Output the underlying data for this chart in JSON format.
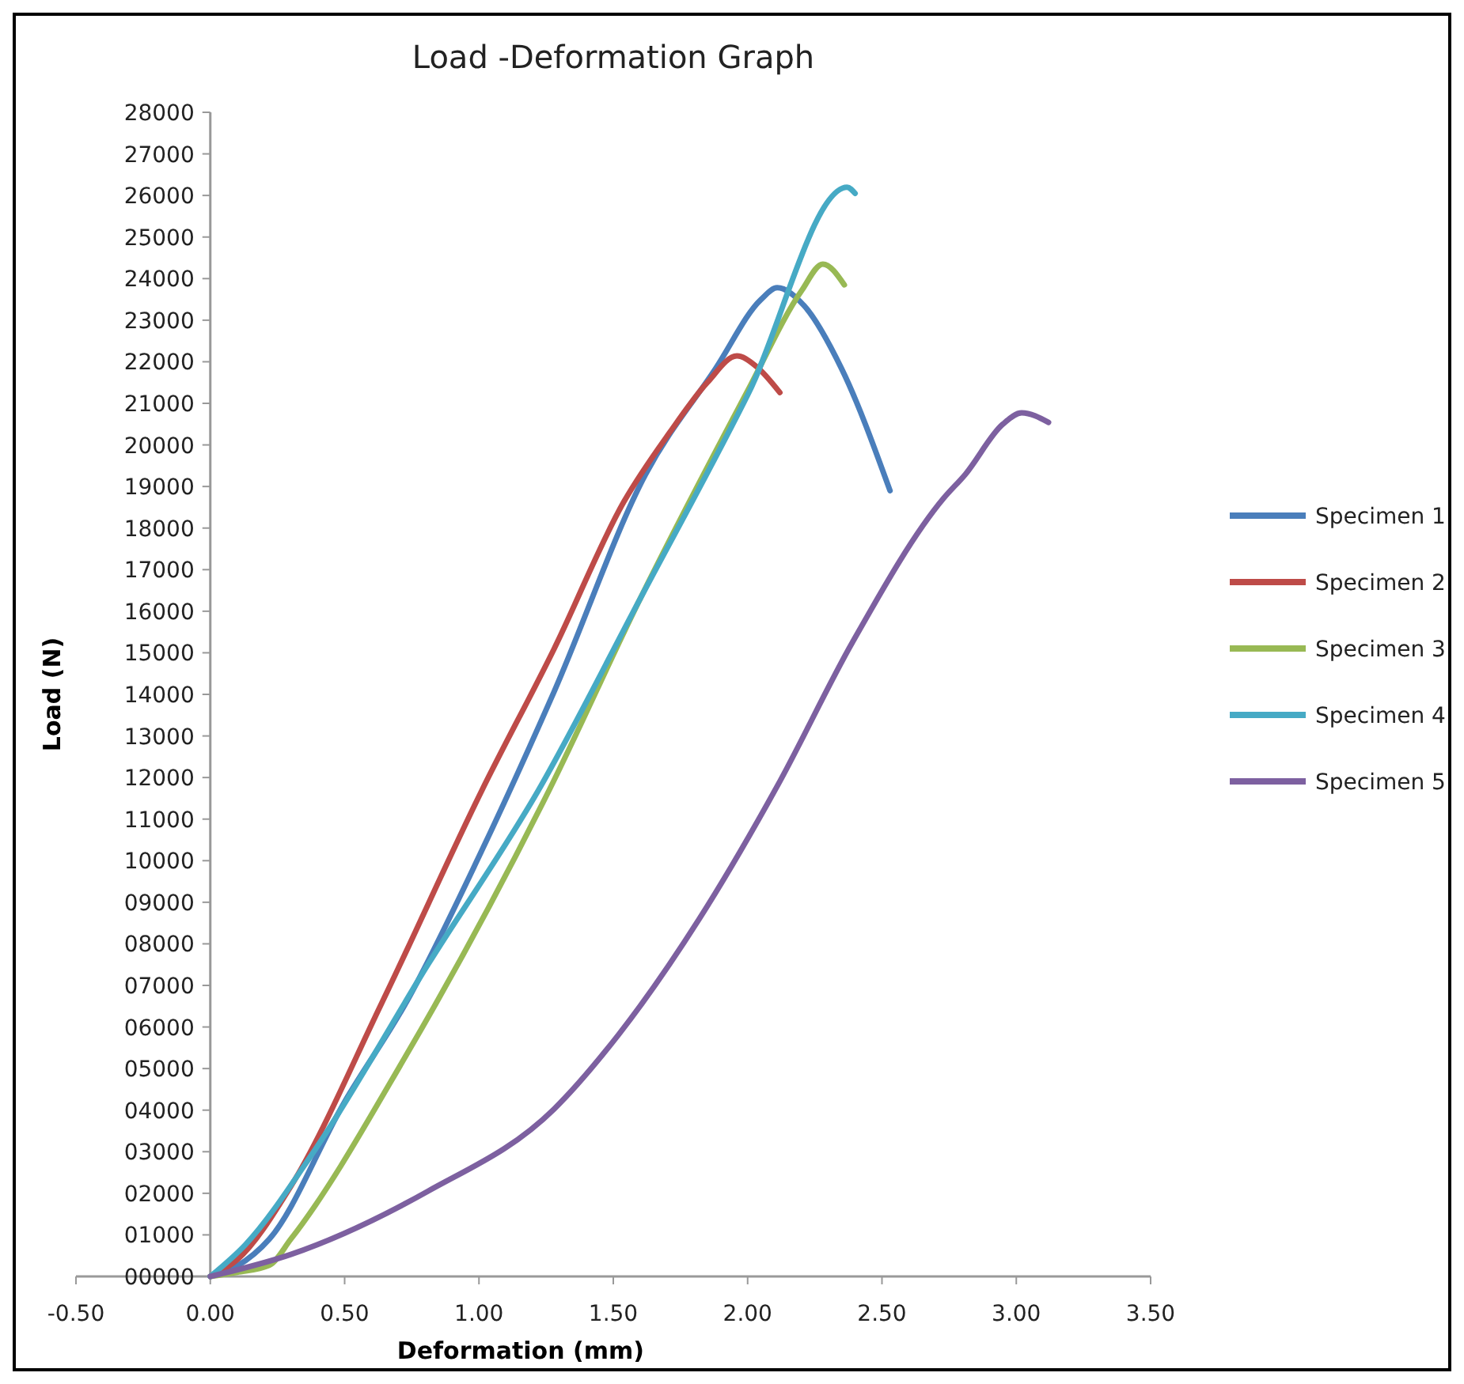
{
  "chart_data": {
    "type": "line",
    "title": "Load -Deformation Graph",
    "xlabel": "Deformation (mm)",
    "ylabel": "Load (N)",
    "xlim": [
      -0.5,
      3.5
    ],
    "xticks": [
      {
        "value": -0.5,
        "label": "-0.50"
      },
      {
        "value": 0,
        "label": "0.00"
      },
      {
        "value": 0.5,
        "label": "0.50"
      },
      {
        "value": 1,
        "label": "1.00"
      },
      {
        "value": 1.5,
        "label": "1.50"
      },
      {
        "value": 2,
        "label": "2.00"
      },
      {
        "value": 2.5,
        "label": "2.50"
      },
      {
        "value": 3,
        "label": "3.00"
      },
      {
        "value": 3.5,
        "label": "3.50"
      }
    ],
    "ylim": [
      0,
      28000
    ],
    "yticks": [
      {
        "value": 0,
        "label": "00000"
      },
      {
        "value": 1000,
        "label": "01000"
      },
      {
        "value": 2000,
        "label": "02000"
      },
      {
        "value": 3000,
        "label": "03000"
      },
      {
        "value": 4000,
        "label": "04000"
      },
      {
        "value": 5000,
        "label": "05000"
      },
      {
        "value": 6000,
        "label": "06000"
      },
      {
        "value": 7000,
        "label": "07000"
      },
      {
        "value": 8000,
        "label": "08000"
      },
      {
        "value": 9000,
        "label": "09000"
      },
      10000,
      11000,
      12000,
      13000,
      14000,
      15000,
      16000,
      17000,
      18000,
      19000,
      20000,
      21000,
      22000,
      23000,
      24000,
      25000,
      26000,
      27000,
      28000
    ],
    "grid": false,
    "legend": "right",
    "marker": "none",
    "line_style": "solid",
    "series": [
      {
        "name": "Specimen 1",
        "color": "#4a7ebb",
        "x": [
          0,
          0.1,
          0.22,
          0.5,
          0.73,
          1.0,
          1.28,
          1.62,
          1.88,
          2.05,
          2.11,
          2.21,
          2.35,
          2.53
        ],
        "values": [
          0,
          250,
          900,
          4200,
          6600,
          10100,
          14070,
          19290,
          21830,
          23500,
          23780,
          23350,
          21830,
          18900
        ]
      },
      {
        "name": "Specimen 2",
        "color": "#be4b48",
        "x": [
          0,
          0.1,
          0.3,
          0.64,
          1.01,
          1.28,
          1.54,
          1.71,
          1.85,
          1.96,
          2.03,
          2.12
        ],
        "values": [
          0,
          400,
          2170,
          6600,
          11680,
          15100,
          18640,
          20300,
          21500,
          22140,
          21900,
          21260
        ]
      },
      {
        "name": "Specimen 3",
        "color": "#98b954",
        "x": [
          0,
          0.1,
          0.22,
          0.3,
          0.73,
          1.26,
          1.6,
          2.0,
          2.2,
          2.28,
          2.36
        ],
        "values": [
          0,
          100,
          270,
          900,
          5330,
          11680,
          16300,
          21300,
          23700,
          24350,
          23850
        ]
      },
      {
        "name": "Specimen 4",
        "color": "#46aac5",
        "x": [
          0,
          0.13,
          0.39,
          0.81,
          1.22,
          1.6,
          2.0,
          2.37,
          2.4
        ],
        "values": [
          0,
          760,
          3050,
          7500,
          11680,
          16300,
          21200,
          26200,
          26050
        ]
      },
      {
        "name": "Specimen 5",
        "color": "#7d60a0",
        "x": [
          0,
          0.3,
          0.81,
          1.28,
          1.52,
          1.82,
          2.11,
          2.39,
          2.73,
          2.81,
          2.95,
          3.02,
          3.12
        ],
        "values": [
          0,
          530,
          2050,
          4030,
          5820,
          8600,
          11790,
          15250,
          18720,
          19290,
          20500,
          20770,
          20540
        ]
      }
    ]
  }
}
